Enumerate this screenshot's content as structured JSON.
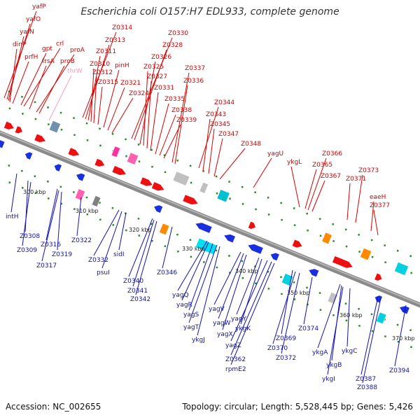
{
  "title": "Escherichia coli O157:H7 EDL933, complete genome",
  "footer": {
    "accession": "Accession: NC_002655",
    "summary": "Topology: circular; Length: 5,528,445 bp; Genes: 5,426"
  },
  "colors": {
    "forward_label": "#d40000",
    "reverse_label": "#1010b0",
    "pseudo_label": "#f4a0c0",
    "forward_gene": "#ee1010",
    "reverse_gene": "#1a30e0",
    "backbone": "#8a8a8a",
    "tick": "#2a8a2a"
  },
  "scale_labels": [
    "300 kbp",
    "310 kbp",
    "320 kbp",
    "330 kbp",
    "340 kbp",
    "350 kbp",
    "360 kbp",
    "370 kbp"
  ],
  "forward_labels": [
    "yafP",
    "yafO",
    "yafN",
    "dinP",
    "prfH",
    "gpt",
    "crl",
    "frsA",
    "proA",
    "proB",
    "thrW",
    "Z0314",
    "Z0313",
    "Z0311",
    "Z0310",
    "Z0312",
    "Z0315",
    "pinH",
    "Z0321",
    "Z0324",
    "Z0330",
    "Z0328",
    "Z0326",
    "Z0325",
    "Z0327",
    "Z0331",
    "Z0335",
    "Z0338",
    "Z0339",
    "Z0337",
    "Z0336",
    "Z0344",
    "Z0343",
    "Z0345",
    "Z0347",
    "Z0348",
    "yagU",
    "ykgL",
    "Z0366",
    "Z0365",
    "Z0367",
    "Z0373",
    "Z0371",
    "eaeH",
    "Z0377"
  ],
  "reverse_labels": [
    "intH",
    "Z0308",
    "Z0309",
    "Z0316",
    "Z0317",
    "Z0319",
    "Z0322",
    "Z0332",
    "psuI",
    "sidI",
    "Z0340",
    "Z0341",
    "Z0342",
    "Z0346",
    "yagQ",
    "yagR",
    "yagS",
    "yagT",
    "ykgJ",
    "yagV",
    "yagW",
    "yagX",
    "yagY",
    "ykgK",
    "yagZ",
    "Z0362",
    "rpmE2",
    "Z0369",
    "Z0370",
    "Z0372",
    "Z0374",
    "ykgA",
    "ykgB",
    "ykgI",
    "ykgC",
    "Z0387",
    "Z0388",
    "Z0394"
  ]
}
